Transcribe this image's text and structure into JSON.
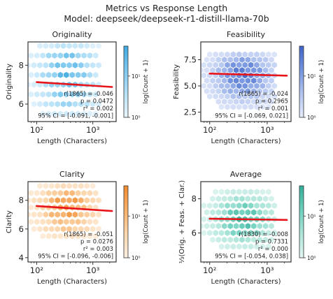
{
  "figure": {
    "title_line1": "Metrics vs Response Length",
    "title_line2": "Model: deepseek/deepseek-r1-distill-llama-70b"
  },
  "chart_data": [
    {
      "type": "scatter",
      "subtype": "hexbin",
      "title": "Originality",
      "xlabel": "Length (Characters)",
      "ylabel": "Originality",
      "xscale": "log",
      "xlim": [
        70,
        2600
      ],
      "ylim": [
        5.1,
        9.2
      ],
      "xticks": [
        {
          "value": 100,
          "label": "10²"
        },
        {
          "value": 1000,
          "label": "10³"
        }
      ],
      "yticks": [
        6,
        8
      ],
      "colormap": "Blues",
      "colorbar_label": "log(Count + 1)",
      "colorbar_ticks": [
        "10⁰",
        "10¹"
      ],
      "rating_levels": [
        5.5,
        6,
        6.5,
        7,
        7.5,
        8,
        8.5,
        9
      ],
      "rating_weights": [
        0.15,
        0.5,
        0.7,
        0.75,
        1.0,
        0.85,
        0.75,
        0.25
      ],
      "length_center": 350,
      "regression": {
        "y_at_100": 7.13,
        "y_at_2200": 6.88
      },
      "stats": [
        "r(1865) = -0.046",
        "p = 0.0472",
        "r² = 0.002",
        "95% CI = [-0.091, -0.001]"
      ]
    },
    {
      "type": "scatter",
      "subtype": "hexbin",
      "title": "Feasibility",
      "xlabel": "Length (Characters)",
      "ylabel": "Feasibility",
      "xscale": "log",
      "xlim": [
        70,
        2600
      ],
      "ylim": [
        1.6,
        9.2
      ],
      "xticks": [
        {
          "value": 100,
          "label": "10²"
        },
        {
          "value": 1000,
          "label": "10³"
        }
      ],
      "yticks": [
        2.5,
        5.0,
        7.5
      ],
      "colormap": "Royal blue",
      "colorbar_label": "log(Count + 1)",
      "colorbar_ticks": [
        "10⁰",
        "10¹"
      ],
      "rating_levels": [
        3,
        3.5,
        4,
        4.5,
        5,
        5.5,
        6,
        6.5,
        7,
        7.5,
        8
      ],
      "rating_weights": [
        0.1,
        0.2,
        0.35,
        0.6,
        0.75,
        0.9,
        1.0,
        0.95,
        0.8,
        0.55,
        0.25
      ],
      "length_center": 380,
      "regression": {
        "y_at_100": 6.18,
        "y_at_2200": 5.98
      },
      "stats": [
        "r(1865) = -0.024",
        "p = 0.2965",
        "r² = 0.001",
        "95% CI = [-0.069, 0.021]"
      ]
    },
    {
      "type": "scatter",
      "subtype": "hexbin",
      "title": "Clarity",
      "xlabel": "Length (Characters)",
      "ylabel": "Clarity",
      "xscale": "log",
      "xlim": [
        70,
        2600
      ],
      "ylim": [
        3.7,
        9.3
      ],
      "xticks": [
        {
          "value": 100,
          "label": "10²"
        },
        {
          "value": 1000,
          "label": "10³"
        }
      ],
      "yticks": [
        4,
        6,
        8
      ],
      "colormap": "Oranges",
      "colorbar_label": "log(Count + 1)",
      "colorbar_ticks": [
        "10⁰",
        "10¹"
      ],
      "rating_levels": [
        5.5,
        6,
        6.5,
        7,
        7.5,
        8,
        8.5,
        9
      ],
      "rating_weights": [
        0.15,
        0.45,
        0.55,
        0.9,
        0.8,
        1.0,
        0.6,
        0.2
      ],
      "length_center": 350,
      "regression": {
        "y_at_100": 7.6,
        "y_at_2200": 7.25
      },
      "stats": [
        "r(1865) = -0.051",
        "p = 0.0276",
        "r² = 0.003",
        "95% CI = [-0.096, -0.006]"
      ]
    },
    {
      "type": "scatter",
      "subtype": "hexbin",
      "title": "Average",
      "xlabel": "Length (Characters)",
      "ylabel": "⅓(Orig. + Feas. + Clar.)",
      "xscale": "log",
      "xlim": [
        70,
        2600
      ],
      "ylim": [
        4.3,
        9.0
      ],
      "xticks": [
        {
          "value": 100,
          "label": "10²"
        },
        {
          "value": 1000,
          "label": "10³"
        }
      ],
      "yticks": [
        6,
        8
      ],
      "colormap": "Teal",
      "colorbar_label": "log(Count + 1)",
      "colorbar_ticks": [
        "10⁰",
        "10¹"
      ],
      "rating_levels": [
        5.2,
        5.6,
        6.0,
        6.4,
        6.8,
        7.2,
        7.6,
        8.0,
        8.4
      ],
      "rating_weights": [
        0.15,
        0.35,
        0.65,
        0.85,
        1.0,
        0.9,
        0.65,
        0.35,
        0.15
      ],
      "length_center": 380,
      "regression": {
        "y_at_100": 6.83,
        "y_at_2200": 6.76
      },
      "stats": [
        "r(1830) = -0.008",
        "p = 0.7331",
        "r² = 0.000",
        "95% CI = [-0.054, 0.038]"
      ]
    }
  ],
  "colors": {
    "regression": "#e8141a",
    "axis": "#333333",
    "Blues": [
      "#eaf6fd",
      "#b8e2f8",
      "#7cc8f0",
      "#3fa9e0"
    ],
    "Royal blue": [
      "#e6ecfb",
      "#b3c5f0",
      "#7393e0",
      "#3f64c9"
    ],
    "Oranges": [
      "#fdf0e2",
      "#fcd7ad",
      "#f8b069",
      "#f08a2c"
    ],
    "Teal": [
      "#e4f6f2",
      "#aee6da",
      "#6cd0bd",
      "#32ae98"
    ]
  }
}
